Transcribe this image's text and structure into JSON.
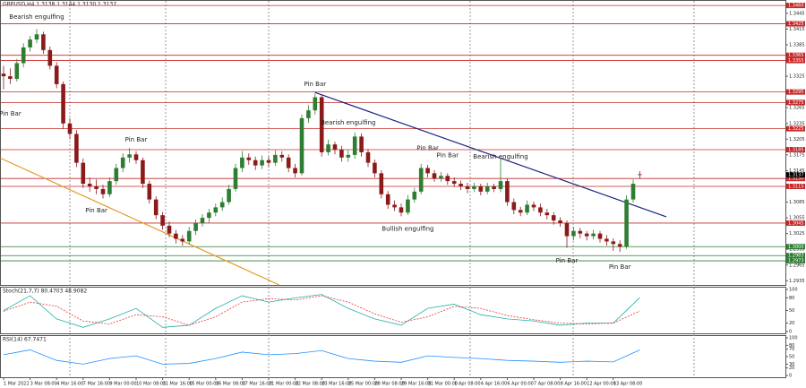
{
  "chart_data": [
    {
      "type": "candlestick",
      "title": "GBPUSD,H4  1.3138 1.3144 1.3130 1.3137",
      "up_color": "#2e7d32",
      "down_color": "#8b1a1a",
      "ylim": [
        1.2927,
        1.3467
      ],
      "yticks": [
        {
          "value": 1.2935,
          "label": "1.2935"
        },
        {
          "value": 1.2965,
          "label": "1.2965"
        },
        {
          "value": 1.2995,
          "label": "1.2995"
        },
        {
          "value": 1.3025,
          "label": "1.3025"
        },
        {
          "value": 1.3055,
          "label": "1.3055"
        },
        {
          "value": 1.3085,
          "label": "1.3085"
        },
        {
          "value": 1.3115,
          "label": "1.3115"
        },
        {
          "value": 1.3145,
          "label": "1.3145"
        },
        {
          "value": 1.3175,
          "label": "1.3175"
        },
        {
          "value": 1.3205,
          "label": "1.3205"
        },
        {
          "value": 1.3235,
          "label": "1.3235"
        },
        {
          "value": 1.3265,
          "label": "1.3265"
        },
        {
          "value": 1.3295,
          "label": "1.3295"
        },
        {
          "value": 1.3325,
          "label": "1.3325"
        },
        {
          "value": 1.3355,
          "label": "1.3355"
        },
        {
          "value": 1.3385,
          "label": "1.3385"
        },
        {
          "value": 1.3415,
          "label": "1.3415"
        },
        {
          "value": 1.3445,
          "label": "1.3445"
        }
      ],
      "xticks": [
        {
          "value": 0,
          "label": "1 Mar 2022"
        },
        {
          "value": 4,
          "label": "3 Mar 08:00"
        },
        {
          "value": 8,
          "label": "4 Mar 16:00"
        },
        {
          "value": 12,
          "label": "7 Mar 16:00"
        },
        {
          "value": 16,
          "label": "9 Mar 00:00"
        },
        {
          "value": 20,
          "label": "10 Mar 08:00"
        },
        {
          "value": 24,
          "label": "11 Mar 16:00"
        },
        {
          "value": 28,
          "label": "15 Mar 00:00"
        },
        {
          "value": 32,
          "label": "16 Mar 08:00"
        },
        {
          "value": 36,
          "label": "17 Mar 16:00"
        },
        {
          "value": 40,
          "label": "21 Mar 00:00"
        },
        {
          "value": 44,
          "label": "22 Mar 08:00"
        },
        {
          "value": 48,
          "label": "23 Mar 16:00"
        },
        {
          "value": 52,
          "label": "25 Mar 00:00"
        },
        {
          "value": 56,
          "label": "28 Mar 08:00"
        },
        {
          "value": 60,
          "label": "29 Mar 16:00"
        },
        {
          "value": 64,
          "label": "31 Mar 00:00"
        },
        {
          "value": 68,
          "label": "1 Apr 08:00"
        },
        {
          "value": 72,
          "label": "4 Apr 16:00"
        },
        {
          "value": 76,
          "label": "6 Apr 00:00"
        },
        {
          "value": 80,
          "label": "7 Apr 08:00"
        },
        {
          "value": 84,
          "label": "8 Apr 16:00"
        },
        {
          "value": 88,
          "label": "12 Apr 00:00"
        },
        {
          "value": 92,
          "label": "13 Apr 08:00"
        }
      ],
      "levels": [
        {
          "value": 1.346,
          "label": "1.3460",
          "color": "#c62828"
        },
        {
          "value": 1.3425,
          "label": "1.3425",
          "color": "#c62828"
        },
        {
          "value": 1.3365,
          "label": "1.3365",
          "color": "#c62828"
        },
        {
          "value": 1.3355,
          "label": "1.3355",
          "color": "#c62828"
        },
        {
          "value": 1.3295,
          "label": "1.3295",
          "color": "#c62828"
        },
        {
          "value": 1.3275,
          "label": "1.3275",
          "color": "#c62828"
        },
        {
          "value": 1.3225,
          "label": "1.3225",
          "color": "#c62828"
        },
        {
          "value": 1.3185,
          "label": "1.3185",
          "color": "#c62828"
        },
        {
          "value": 1.313,
          "label": "1.3130",
          "color": "#c62828"
        },
        {
          "value": 1.3115,
          "label": "1.3115",
          "color": "#c62828"
        },
        {
          "value": 1.3045,
          "label": "1.3045",
          "color": "#c62828"
        },
        {
          "value": 1.3,
          "label": "1.3000",
          "color": "#2e7d32"
        },
        {
          "value": 1.2983,
          "label": "1.2983",
          "color": "#2e7d32"
        },
        {
          "value": 1.2973,
          "label": "1.2973",
          "color": "#2e7d32"
        }
      ],
      "last_price": {
        "value": 1.3137,
        "label": "1.3137"
      },
      "trendlines": [
        {
          "color": "#1a237e",
          "from": [
            47,
            1.3294
          ],
          "to": [
            100,
            1.3057
          ]
        },
        {
          "color": "#e69a28",
          "from": [
            -0.5,
            1.3169
          ],
          "to": [
            41.6,
            1.2927
          ]
        }
      ],
      "annotations": [
        {
          "text": "Bearish engulfing",
          "index": 5,
          "price": 1.3438
        },
        {
          "text": "Pin Bar",
          "index": 1,
          "price": 1.3253
        },
        {
          "text": "Pin Bar",
          "index": 20,
          "price": 1.3204
        },
        {
          "text": "Pin Bar",
          "index": 14,
          "price": 1.3069
        },
        {
          "text": "Pin Bar",
          "index": 47,
          "price": 1.331
        },
        {
          "text": "Bearish engulfing",
          "index": 52,
          "price": 1.3236
        },
        {
          "text": "Pin Bar",
          "index": 64,
          "price": 1.3188
        },
        {
          "text": "Pin Bar",
          "index": 67,
          "price": 1.3174
        },
        {
          "text": "Bearish engulfing",
          "index": 75,
          "price": 1.3171
        },
        {
          "text": "Bullish engulfing",
          "index": 61,
          "price": 1.3034
        },
        {
          "text": "Pin Bar",
          "index": 85,
          "price": 1.2973
        },
        {
          "text": "Pin Bar",
          "index": 93,
          "price": 1.2961
        }
      ],
      "ohlc": [
        [
          1.333,
          1.3345,
          1.33,
          1.3325
        ],
        [
          1.3325,
          1.334,
          1.331,
          1.332
        ],
        [
          1.332,
          1.3358,
          1.3315,
          1.335
        ],
        [
          1.335,
          1.3388,
          1.3342,
          1.338
        ],
        [
          1.338,
          1.3402,
          1.3372,
          1.3395
        ],
        [
          1.3395,
          1.3415,
          1.3388,
          1.3405
        ],
        [
          1.3405,
          1.341,
          1.3368,
          1.3375
        ],
        [
          1.3375,
          1.3382,
          1.3338,
          1.3345
        ],
        [
          1.3345,
          1.3352,
          1.3302,
          1.331
        ],
        [
          1.331,
          1.3315,
          1.3225,
          1.3235
        ],
        [
          1.3235,
          1.3245,
          1.3205,
          1.3215
        ],
        [
          1.3215,
          1.3222,
          1.3152,
          1.316
        ],
        [
          1.316,
          1.3168,
          1.3112,
          1.312
        ],
        [
          1.312,
          1.3132,
          1.3105,
          1.3115
        ],
        [
          1.3115,
          1.3128,
          1.31,
          1.311
        ],
        [
          1.311,
          1.3118,
          1.3092,
          1.31
        ],
        [
          1.31,
          1.3132,
          1.3095,
          1.3125
        ],
        [
          1.3125,
          1.3158,
          1.3118,
          1.315
        ],
        [
          1.315,
          1.3178,
          1.3142,
          1.317
        ],
        [
          1.317,
          1.3188,
          1.316,
          1.3176
        ],
        [
          1.3176,
          1.3182,
          1.3158,
          1.3165
        ],
        [
          1.3165,
          1.317,
          1.3112,
          1.312
        ],
        [
          1.312,
          1.3126,
          1.3082,
          1.309
        ],
        [
          1.309,
          1.3096,
          1.3052,
          1.306
        ],
        [
          1.306,
          1.3066,
          1.3032,
          1.304
        ],
        [
          1.304,
          1.3048,
          1.3018,
          1.3025
        ],
        [
          1.3025,
          1.3032,
          1.3006,
          1.3015
        ],
        [
          1.3015,
          1.3022,
          1.3002,
          1.301
        ],
        [
          1.301,
          1.3038,
          1.3004,
          1.303
        ],
        [
          1.303,
          1.3052,
          1.3022,
          1.3045
        ],
        [
          1.3045,
          1.3062,
          1.3038,
          1.3055
        ],
        [
          1.3055,
          1.3072,
          1.3046,
          1.3065
        ],
        [
          1.3065,
          1.3082,
          1.3058,
          1.3075
        ],
        [
          1.3075,
          1.3094,
          1.3068,
          1.3085
        ],
        [
          1.3085,
          1.3118,
          1.308,
          1.311
        ],
        [
          1.311,
          1.3158,
          1.3105,
          1.315
        ],
        [
          1.315,
          1.3182,
          1.3142,
          1.317
        ],
        [
          1.317,
          1.3178,
          1.3156,
          1.3165
        ],
        [
          1.3165,
          1.3172,
          1.3146,
          1.3155
        ],
        [
          1.3155,
          1.3174,
          1.3148,
          1.3165
        ],
        [
          1.3165,
          1.3172,
          1.3152,
          1.316
        ],
        [
          1.316,
          1.3184,
          1.3154,
          1.3175
        ],
        [
          1.3175,
          1.3182,
          1.3162,
          1.317
        ],
        [
          1.317,
          1.3176,
          1.3142,
          1.315
        ],
        [
          1.315,
          1.3158,
          1.3132,
          1.314
        ],
        [
          1.314,
          1.3252,
          1.3136,
          1.3245
        ],
        [
          1.3245,
          1.327,
          1.3236,
          1.326
        ],
        [
          1.326,
          1.3292,
          1.3252,
          1.3285
        ],
        [
          1.3285,
          1.329,
          1.3172,
          1.318
        ],
        [
          1.318,
          1.3204,
          1.3174,
          1.3195
        ],
        [
          1.3195,
          1.32,
          1.3176,
          1.3185
        ],
        [
          1.3185,
          1.3192,
          1.3162,
          1.317
        ],
        [
          1.317,
          1.3184,
          1.3162,
          1.3175
        ],
        [
          1.3175,
          1.3218,
          1.3168,
          1.321
        ],
        [
          1.321,
          1.3216,
          1.3172,
          1.318
        ],
        [
          1.318,
          1.3186,
          1.3152,
          1.316
        ],
        [
          1.316,
          1.3166,
          1.3132,
          1.314
        ],
        [
          1.314,
          1.3146,
          1.3092,
          1.31
        ],
        [
          1.31,
          1.3106,
          1.3072,
          1.308
        ],
        [
          1.308,
          1.3088,
          1.3068,
          1.3075
        ],
        [
          1.3075,
          1.3082,
          1.3058,
          1.3065
        ],
        [
          1.3065,
          1.3098,
          1.306,
          1.309
        ],
        [
          1.309,
          1.3112,
          1.3084,
          1.3105
        ],
        [
          1.3105,
          1.3158,
          1.31,
          1.315
        ],
        [
          1.315,
          1.3156,
          1.3132,
          1.314
        ],
        [
          1.314,
          1.3146,
          1.3124,
          1.313
        ],
        [
          1.313,
          1.3142,
          1.3124,
          1.3135
        ],
        [
          1.3135,
          1.314,
          1.3118,
          1.3125
        ],
        [
          1.3125,
          1.3132,
          1.3114,
          1.312
        ],
        [
          1.312,
          1.3126,
          1.3108,
          1.3115
        ],
        [
          1.3115,
          1.3122,
          1.3102,
          1.311
        ],
        [
          1.311,
          1.3122,
          1.3104,
          1.3115
        ],
        [
          1.3115,
          1.312,
          1.3098,
          1.3105
        ],
        [
          1.3105,
          1.3122,
          1.31,
          1.3115
        ],
        [
          1.3115,
          1.312,
          1.3104,
          1.311
        ],
        [
          1.311,
          1.317,
          1.3104,
          1.3125
        ],
        [
          1.3125,
          1.313,
          1.3078,
          1.3085
        ],
        [
          1.3085,
          1.3092,
          1.3062,
          1.307
        ],
        [
          1.307,
          1.3076,
          1.3058,
          1.3065
        ],
        [
          1.3065,
          1.3088,
          1.306,
          1.308
        ],
        [
          1.308,
          1.3086,
          1.3068,
          1.3075
        ],
        [
          1.3075,
          1.3082,
          1.3058,
          1.3065
        ],
        [
          1.3065,
          1.3072,
          1.3052,
          1.306
        ],
        [
          1.306,
          1.3066,
          1.3042,
          1.305
        ],
        [
          1.305,
          1.3056,
          1.3038,
          1.3045
        ],
        [
          1.3045,
          1.305,
          1.2998,
          1.302
        ],
        [
          1.302,
          1.3038,
          1.3012,
          1.303
        ],
        [
          1.303,
          1.3036,
          1.3016,
          1.3025
        ],
        [
          1.3025,
          1.303,
          1.3012,
          1.302
        ],
        [
          1.302,
          1.3032,
          1.3014,
          1.3025
        ],
        [
          1.3025,
          1.303,
          1.3008,
          1.3015
        ],
        [
          1.3015,
          1.3022,
          1.3002,
          1.301
        ],
        [
          1.301,
          1.3016,
          1.2992,
          1.3005
        ],
        [
          1.3005,
          1.3012,
          1.299,
          1.3
        ],
        [
          1.3,
          1.3098,
          1.2996,
          1.309
        ],
        [
          1.309,
          1.3128,
          1.3084,
          1.312
        ],
        [
          1.3138,
          1.3144,
          1.313,
          1.3137
        ]
      ]
    },
    {
      "type": "line",
      "title": "Stoch(21,7,7) 80.4703 48.9082",
      "ylim": [
        0,
        100
      ],
      "yticks": [
        0,
        20,
        50,
        80,
        100
      ],
      "x": [
        0,
        4,
        8,
        12,
        16,
        20,
        24,
        28,
        32,
        36,
        40,
        44,
        48,
        52,
        56,
        60,
        64,
        68,
        72,
        76,
        80,
        84,
        88,
        92,
        96
      ],
      "series": [
        {
          "color": "#20b2aa",
          "dashed": false,
          "values": [
            50,
            85,
            30,
            10,
            30,
            55,
            10,
            15,
            55,
            85,
            70,
            80,
            88,
            55,
            30,
            15,
            55,
            65,
            40,
            30,
            25,
            15,
            20,
            20,
            80.47
          ]
        },
        {
          "color": "#e53935",
          "dashed": true,
          "values": [
            48,
            70,
            60,
            25,
            18,
            40,
            35,
            15,
            35,
            70,
            78,
            75,
            85,
            70,
            42,
            22,
            35,
            60,
            55,
            38,
            28,
            20,
            18,
            20,
            48.91
          ]
        }
      ]
    },
    {
      "type": "line",
      "title": "RSI(14) 67.7471",
      "ylim": [
        0,
        100
      ],
      "yticks": [
        0,
        20,
        30,
        50,
        70,
        80,
        100
      ],
      "x": [
        0,
        4,
        8,
        12,
        16,
        20,
        24,
        28,
        32,
        36,
        40,
        44,
        48,
        52,
        56,
        60,
        64,
        68,
        72,
        76,
        80,
        84,
        88,
        92,
        96
      ],
      "series": [
        {
          "color": "#1e90ff",
          "dashed": false,
          "values": [
            55,
            68,
            40,
            30,
            45,
            52,
            30,
            32,
            45,
            62,
            55,
            58,
            66,
            45,
            38,
            35,
            52,
            48,
            45,
            40,
            38,
            35,
            38,
            36,
            67.75
          ]
        }
      ]
    }
  ]
}
